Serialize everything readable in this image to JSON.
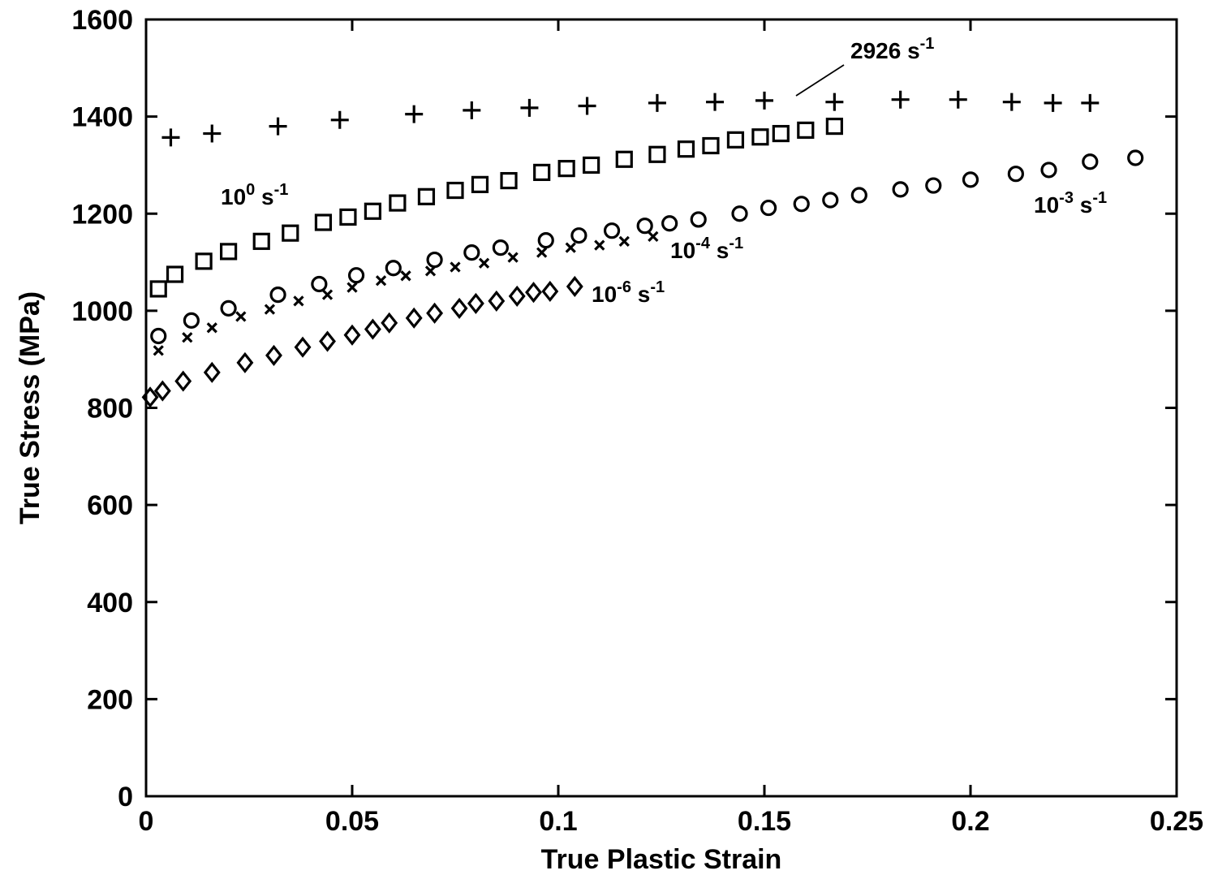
{
  "chart_data": {
    "type": "scatter",
    "xlabel": "True Plastic Strain",
    "ylabel": "True Stress (MPa)",
    "xlim": [
      0,
      0.25
    ],
    "ylim": [
      0,
      1600
    ],
    "xticks": [
      "0",
      "0.05",
      "0.1",
      "0.15",
      "0.2",
      "0.25"
    ],
    "yticks": [
      "0",
      "200",
      "400",
      "600",
      "800",
      "1000",
      "1200",
      "1400",
      "1600"
    ],
    "grid": false,
    "legend": "none",
    "series": [
      {
        "name": "2926 s-1",
        "marker": "plus",
        "color": "#000000",
        "x": [
          0.006,
          0.016,
          0.032,
          0.047,
          0.065,
          0.079,
          0.093,
          0.107,
          0.124,
          0.138,
          0.15,
          0.167,
          0.183,
          0.197,
          0.21,
          0.22,
          0.229
        ],
        "y": [
          1357,
          1365,
          1380,
          1393,
          1405,
          1413,
          1418,
          1422,
          1428,
          1430,
          1433,
          1430,
          1435,
          1435,
          1430,
          1428,
          1428
        ]
      },
      {
        "name": "10^0 s-1",
        "marker": "square",
        "color": "#000000",
        "x": [
          0.003,
          0.007,
          0.014,
          0.02,
          0.028,
          0.035,
          0.043,
          0.049,
          0.055,
          0.061,
          0.068,
          0.075,
          0.081,
          0.088,
          0.096,
          0.102,
          0.108,
          0.116,
          0.124,
          0.131,
          0.137,
          0.143,
          0.149,
          0.154,
          0.16,
          0.167
        ],
        "y": [
          1045,
          1075,
          1102,
          1122,
          1143,
          1160,
          1182,
          1193,
          1205,
          1222,
          1235,
          1248,
          1260,
          1268,
          1285,
          1293,
          1300,
          1312,
          1322,
          1333,
          1340,
          1352,
          1358,
          1365,
          1372,
          1380
        ]
      },
      {
        "name": "10^-3 s-1",
        "marker": "circle",
        "color": "#000000",
        "x": [
          0.003,
          0.011,
          0.02,
          0.032,
          0.042,
          0.051,
          0.06,
          0.07,
          0.079,
          0.086,
          0.097,
          0.105,
          0.113,
          0.121,
          0.127,
          0.134,
          0.144,
          0.151,
          0.159,
          0.166,
          0.173,
          0.183,
          0.191,
          0.2,
          0.211,
          0.219,
          0.229,
          0.24
        ],
        "y": [
          948,
          980,
          1005,
          1033,
          1055,
          1073,
          1088,
          1105,
          1120,
          1130,
          1145,
          1155,
          1165,
          1175,
          1180,
          1188,
          1200,
          1212,
          1220,
          1228,
          1238,
          1250,
          1258,
          1270,
          1282,
          1290,
          1307,
          1315
        ]
      },
      {
        "name": "10^-4 s-1",
        "marker": "x",
        "color": "#000000",
        "x": [
          0.003,
          0.01,
          0.016,
          0.023,
          0.03,
          0.037,
          0.044,
          0.05,
          0.057,
          0.063,
          0.069,
          0.075,
          0.082,
          0.089,
          0.096,
          0.103,
          0.11,
          0.116,
          0.123
        ],
        "y": [
          918,
          945,
          965,
          988,
          1003,
          1020,
          1033,
          1048,
          1062,
          1072,
          1082,
          1090,
          1098,
          1110,
          1120,
          1130,
          1135,
          1143,
          1153
        ]
      },
      {
        "name": "10^-6 s-1",
        "marker": "diamond",
        "color": "#000000",
        "x": [
          0.001,
          0.004,
          0.009,
          0.016,
          0.024,
          0.031,
          0.038,
          0.044,
          0.05,
          0.055,
          0.059,
          0.065,
          0.07,
          0.076,
          0.08,
          0.085,
          0.09,
          0.094,
          0.098,
          0.104
        ],
        "y": [
          822,
          835,
          855,
          873,
          893,
          908,
          925,
          937,
          950,
          962,
          975,
          985,
          995,
          1005,
          1015,
          1020,
          1030,
          1038,
          1040,
          1050
        ]
      }
    ],
    "annotations": [
      {
        "base": "2926 s",
        "sup": "-1",
        "pointer": true
      },
      {
        "base": "10",
        "sup": "0",
        "tail": " s",
        "sup2": "-1"
      },
      {
        "base": "10",
        "sup": "-3",
        "tail": " s",
        "sup2": "-1"
      },
      {
        "base": "10",
        "sup": "-4",
        "tail": " s",
        "sup2": "-1"
      },
      {
        "base": "10",
        "sup": "-6",
        "tail": " s",
        "sup2": "-1"
      }
    ]
  }
}
